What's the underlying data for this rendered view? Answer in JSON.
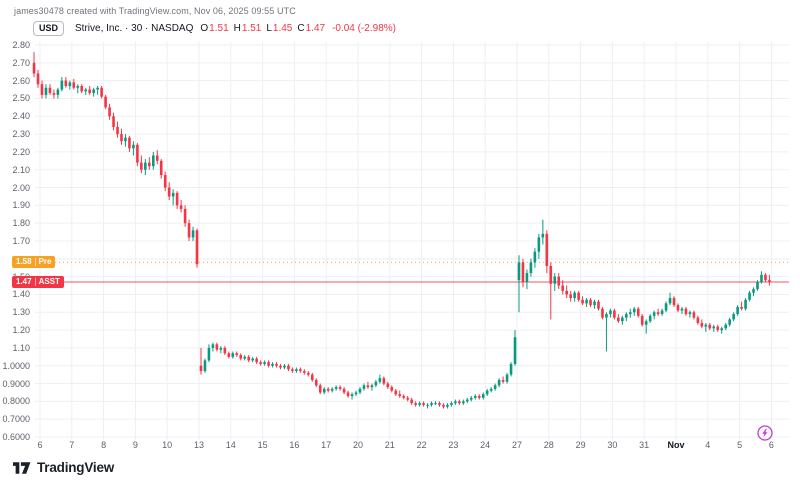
{
  "attribution": "james30478 created with TradingView.com, Nov 06, 2025 09:55 UTC",
  "legend": {
    "currency": "USD",
    "title": "Strive, Inc. · 30 · NASDAQ",
    "o_label": "O",
    "o": "1.51",
    "h_label": "H",
    "h": "1.51",
    "l_label": "L",
    "l": "1.45",
    "c_label": "C",
    "c": "1.47",
    "change": "-0.04 (-2.98%)"
  },
  "footer": {
    "logo_text": "TradingView"
  },
  "icons": {
    "bottom_right": "boost-lightning-icon",
    "logo_mark": "tradingview-mark-icon"
  },
  "colors": {
    "up": "#089981",
    "down": "#F23645",
    "grid": "#EDEFF2",
    "axis_text": "#5D616B",
    "title_text": "#131722",
    "pre_market": "#F7A224",
    "last_price": "#F23645",
    "attribution": "#70747C",
    "logo": "#1B2028",
    "boost": "#C13BD4",
    "background": "#FFFFFF"
  },
  "chart_data": {
    "type": "candlestick",
    "title": "Strive, Inc.",
    "symbol": "ASST",
    "exchange": "NASDAQ",
    "interval": "30",
    "currency": "USD",
    "last_close": "1.47",
    "pre_market_price": "1.58",
    "y_axis": {
      "top": 2.8,
      "bottom": 0.6,
      "grid": true
    },
    "y_ticks": [
      [
        2.8,
        "2.80"
      ],
      [
        2.7,
        "2.70"
      ],
      [
        2.6,
        "2.60"
      ],
      [
        2.5,
        "2.50"
      ],
      [
        2.4,
        "2.40"
      ],
      [
        2.3,
        "2.30"
      ],
      [
        2.2,
        "2.20"
      ],
      [
        2.1,
        "2.10"
      ],
      [
        2.0,
        "2.00"
      ],
      [
        1.9,
        "1.90"
      ],
      [
        1.8,
        "1.80"
      ],
      [
        1.7,
        "1.70"
      ],
      [
        1.6,
        ""
      ],
      [
        1.5,
        "1.50"
      ],
      [
        1.4,
        "1.40"
      ],
      [
        1.3,
        "1.30"
      ],
      [
        1.2,
        "1.20"
      ],
      [
        1.1,
        "1.10"
      ],
      [
        1.0,
        "1.0000"
      ],
      [
        0.9,
        "0.9000"
      ],
      [
        0.8,
        "0.8000"
      ],
      [
        0.7,
        "0.7000"
      ],
      [
        0.6,
        "0.6000"
      ]
    ],
    "x_ticks": [
      [
        0,
        "6"
      ],
      [
        1,
        "7"
      ],
      [
        2,
        "8"
      ],
      [
        3,
        "9"
      ],
      [
        4,
        "10"
      ],
      [
        5,
        "13"
      ],
      [
        6,
        "14"
      ],
      [
        7,
        "15"
      ],
      [
        8,
        "16"
      ],
      [
        9,
        "17"
      ],
      [
        10,
        "20"
      ],
      [
        11,
        "21"
      ],
      [
        12,
        "22"
      ],
      [
        13,
        "23"
      ],
      [
        14,
        "24"
      ],
      [
        15,
        "27"
      ],
      [
        16,
        "28"
      ],
      [
        17,
        "29"
      ],
      [
        18,
        "30"
      ],
      [
        19,
        "31"
      ],
      [
        20,
        "Nov"
      ],
      [
        21,
        "4"
      ],
      [
        22,
        "5"
      ],
      [
        23,
        "6"
      ]
    ],
    "price_lines": [
      {
        "price": 1.58,
        "value": "1.58",
        "tag": "Pre",
        "color": "#F7A224",
        "style": "dotted"
      },
      {
        "price": 1.47,
        "value": "1.47",
        "tag": "ASST",
        "color": "#F23645",
        "style": "solid"
      }
    ],
    "candles": [
      [
        0.25,
        2.7,
        2.76,
        2.62,
        2.64
      ],
      [
        0.375,
        2.64,
        2.66,
        2.56,
        2.58
      ],
      [
        0.5,
        2.58,
        2.6,
        2.5,
        2.52
      ],
      [
        0.625,
        2.52,
        2.58,
        2.5,
        2.56
      ],
      [
        0.75,
        2.56,
        2.58,
        2.52,
        2.53
      ],
      [
        0.875,
        2.53,
        2.55,
        2.5,
        2.52
      ],
      [
        1.0,
        2.52,
        2.56,
        2.5,
        2.55
      ],
      [
        1.125,
        2.55,
        2.62,
        2.54,
        2.6
      ],
      [
        1.25,
        2.6,
        2.62,
        2.56,
        2.57
      ],
      [
        1.375,
        2.57,
        2.6,
        2.55,
        2.59
      ],
      [
        1.5,
        2.59,
        2.61,
        2.55,
        2.56
      ],
      [
        1.625,
        2.56,
        2.58,
        2.53,
        2.57
      ],
      [
        1.75,
        2.57,
        2.58,
        2.53,
        2.54
      ],
      [
        1.875,
        2.54,
        2.56,
        2.52,
        2.55
      ],
      [
        2.0,
        2.55,
        2.57,
        2.52,
        2.53
      ],
      [
        2.125,
        2.53,
        2.56,
        2.51,
        2.55
      ],
      [
        2.25,
        2.55,
        2.57,
        2.52,
        2.56
      ],
      [
        2.375,
        2.56,
        2.57,
        2.5,
        2.51
      ],
      [
        2.5,
        2.51,
        2.52,
        2.44,
        2.45
      ],
      [
        2.625,
        2.45,
        2.47,
        2.38,
        2.4
      ],
      [
        2.75,
        2.4,
        2.42,
        2.32,
        2.34
      ],
      [
        2.875,
        2.34,
        2.37,
        2.28,
        2.3
      ],
      [
        3.0,
        2.3,
        2.33,
        2.24,
        2.26
      ],
      [
        3.125,
        2.26,
        2.3,
        2.23,
        2.28
      ],
      [
        3.25,
        2.28,
        2.29,
        2.2,
        2.22
      ],
      [
        3.375,
        2.22,
        2.26,
        2.18,
        2.24
      ],
      [
        3.5,
        2.24,
        2.25,
        2.12,
        2.14
      ],
      [
        3.625,
        2.14,
        2.18,
        2.08,
        2.1
      ],
      [
        3.75,
        2.1,
        2.16,
        2.07,
        2.14
      ],
      [
        3.875,
        2.14,
        2.17,
        2.1,
        2.12
      ],
      [
        4.0,
        2.12,
        2.2,
        2.1,
        2.18
      ],
      [
        4.125,
        2.18,
        2.21,
        2.13,
        2.15
      ],
      [
        4.25,
        2.15,
        2.16,
        2.05,
        2.07
      ],
      [
        4.375,
        2.07,
        2.09,
        1.98,
        2.0
      ],
      [
        4.5,
        2.0,
        2.03,
        1.93,
        1.95
      ],
      [
        4.625,
        1.95,
        1.99,
        1.9,
        1.97
      ],
      [
        4.75,
        1.97,
        1.98,
        1.88,
        1.9
      ],
      [
        4.875,
        1.9,
        1.93,
        1.86,
        1.88
      ],
      [
        5.0,
        1.88,
        1.9,
        1.78,
        1.8
      ],
      [
        5.125,
        1.8,
        1.82,
        1.7,
        1.72
      ],
      [
        5.25,
        1.72,
        1.78,
        1.7,
        1.76
      ],
      [
        5.375,
        1.76,
        1.77,
        1.55,
        1.57
      ],
      [
        5.5,
        1.0,
        1.1,
        0.95,
        0.97
      ],
      [
        5.625,
        0.97,
        1.04,
        0.96,
        1.03
      ],
      [
        5.75,
        1.03,
        1.12,
        1.02,
        1.1
      ],
      [
        5.875,
        1.1,
        1.13,
        1.08,
        1.12
      ],
      [
        6.0,
        1.12,
        1.13,
        1.08,
        1.09
      ],
      [
        6.125,
        1.09,
        1.11,
        1.07,
        1.1
      ],
      [
        6.25,
        1.1,
        1.11,
        1.06,
        1.07
      ],
      [
        6.375,
        1.07,
        1.08,
        1.04,
        1.05
      ],
      [
        6.5,
        1.05,
        1.08,
        1.04,
        1.07
      ],
      [
        6.625,
        1.07,
        1.08,
        1.05,
        1.06
      ],
      [
        6.75,
        1.06,
        1.07,
        1.03,
        1.04
      ],
      [
        6.875,
        1.04,
        1.06,
        1.03,
        1.05
      ],
      [
        7.0,
        1.05,
        1.06,
        1.02,
        1.03
      ],
      [
        7.125,
        1.03,
        1.05,
        1.02,
        1.04
      ],
      [
        7.25,
        1.04,
        1.05,
        1.01,
        1.02
      ],
      [
        7.375,
        1.02,
        1.03,
        1.0,
        1.01
      ],
      [
        7.5,
        1.01,
        1.03,
        1.0,
        1.02
      ],
      [
        7.625,
        1.02,
        1.03,
        0.99,
        1.0
      ],
      [
        7.75,
        1.0,
        1.02,
        0.99,
        1.01
      ],
      [
        7.875,
        1.01,
        1.02,
        0.99,
        1.0
      ],
      [
        8.0,
        1.0,
        1.01,
        0.98,
        0.99
      ],
      [
        8.125,
        0.99,
        1.01,
        0.98,
        1.0
      ],
      [
        8.25,
        1.0,
        1.01,
        0.97,
        0.98
      ],
      [
        8.375,
        0.98,
        0.99,
        0.96,
        0.97
      ],
      [
        8.5,
        0.97,
        0.99,
        0.96,
        0.98
      ],
      [
        8.625,
        0.98,
        0.99,
        0.96,
        0.97
      ],
      [
        8.75,
        0.97,
        0.98,
        0.95,
        0.96
      ],
      [
        8.875,
        0.96,
        0.97,
        0.94,
        0.95
      ],
      [
        9.0,
        0.95,
        0.96,
        0.91,
        0.92
      ],
      [
        9.125,
        0.92,
        0.93,
        0.88,
        0.89
      ],
      [
        9.25,
        0.89,
        0.9,
        0.84,
        0.85
      ],
      [
        9.375,
        0.85,
        0.88,
        0.84,
        0.87
      ],
      [
        9.5,
        0.87,
        0.88,
        0.85,
        0.86
      ],
      [
        9.625,
        0.86,
        0.88,
        0.85,
        0.87
      ],
      [
        9.75,
        0.87,
        0.89,
        0.86,
        0.88
      ],
      [
        9.875,
        0.88,
        0.89,
        0.86,
        0.87
      ],
      [
        10.0,
        0.87,
        0.88,
        0.84,
        0.85
      ],
      [
        10.125,
        0.85,
        0.86,
        0.82,
        0.83
      ],
      [
        10.25,
        0.83,
        0.85,
        0.81,
        0.84
      ],
      [
        10.375,
        0.84,
        0.86,
        0.83,
        0.85
      ],
      [
        10.5,
        0.85,
        0.88,
        0.84,
        0.87
      ],
      [
        10.625,
        0.87,
        0.9,
        0.86,
        0.89
      ],
      [
        10.75,
        0.89,
        0.91,
        0.87,
        0.88
      ],
      [
        10.875,
        0.88,
        0.9,
        0.86,
        0.89
      ],
      [
        11.0,
        0.89,
        0.92,
        0.88,
        0.91
      ],
      [
        11.125,
        0.91,
        0.95,
        0.9,
        0.93
      ],
      [
        11.25,
        0.93,
        0.94,
        0.89,
        0.9
      ],
      [
        11.375,
        0.9,
        0.91,
        0.87,
        0.88
      ],
      [
        11.5,
        0.88,
        0.89,
        0.85,
        0.86
      ],
      [
        11.625,
        0.86,
        0.87,
        0.83,
        0.84
      ],
      [
        11.75,
        0.84,
        0.86,
        0.82,
        0.83
      ],
      [
        11.875,
        0.83,
        0.84,
        0.81,
        0.82
      ],
      [
        12.0,
        0.82,
        0.83,
        0.8,
        0.81
      ],
      [
        12.125,
        0.81,
        0.82,
        0.78,
        0.79
      ],
      [
        12.25,
        0.79,
        0.8,
        0.77,
        0.78
      ],
      [
        12.375,
        0.78,
        0.8,
        0.77,
        0.79
      ],
      [
        12.5,
        0.79,
        0.8,
        0.77,
        0.78
      ],
      [
        12.625,
        0.78,
        0.79,
        0.76,
        0.78
      ],
      [
        12.75,
        0.78,
        0.8,
        0.77,
        0.79
      ],
      [
        12.875,
        0.79,
        0.8,
        0.78,
        0.79
      ],
      [
        13.0,
        0.79,
        0.8,
        0.77,
        0.78
      ],
      [
        13.125,
        0.78,
        0.79,
        0.76,
        0.77
      ],
      [
        13.25,
        0.77,
        0.79,
        0.76,
        0.78
      ],
      [
        13.375,
        0.78,
        0.8,
        0.77,
        0.79
      ],
      [
        13.5,
        0.79,
        0.81,
        0.78,
        0.8
      ],
      [
        13.625,
        0.8,
        0.81,
        0.78,
        0.79
      ],
      [
        13.75,
        0.79,
        0.81,
        0.78,
        0.8
      ],
      [
        13.875,
        0.8,
        0.82,
        0.79,
        0.81
      ],
      [
        14.0,
        0.81,
        0.83,
        0.8,
        0.82
      ],
      [
        14.125,
        0.82,
        0.84,
        0.81,
        0.83
      ],
      [
        14.25,
        0.83,
        0.84,
        0.81,
        0.82
      ],
      [
        14.375,
        0.82,
        0.85,
        0.81,
        0.84
      ],
      [
        14.5,
        0.84,
        0.87,
        0.83,
        0.86
      ],
      [
        14.625,
        0.86,
        0.88,
        0.85,
        0.87
      ],
      [
        14.75,
        0.87,
        0.9,
        0.86,
        0.89
      ],
      [
        14.875,
        0.89,
        0.93,
        0.88,
        0.92
      ],
      [
        15.0,
        0.92,
        0.94,
        0.9,
        0.91
      ],
      [
        15.125,
        0.91,
        0.96,
        0.9,
        0.95
      ],
      [
        15.25,
        0.95,
        1.02,
        0.94,
        1.01
      ],
      [
        15.375,
        1.01,
        1.2,
        1.0,
        1.16
      ],
      [
        15.5,
        1.48,
        1.62,
        1.3,
        1.58
      ],
      [
        15.625,
        1.58,
        1.6,
        1.44,
        1.47
      ],
      [
        15.75,
        1.47,
        1.54,
        1.43,
        1.52
      ],
      [
        15.875,
        1.52,
        1.6,
        1.5,
        1.58
      ],
      [
        16.0,
        1.58,
        1.66,
        1.55,
        1.64
      ],
      [
        16.125,
        1.64,
        1.74,
        1.6,
        1.72
      ],
      [
        16.25,
        1.72,
        1.82,
        1.68,
        1.74
      ],
      [
        16.375,
        1.74,
        1.76,
        1.52,
        1.56
      ],
      [
        16.5,
        1.56,
        1.58,
        1.26,
        1.46
      ],
      [
        16.625,
        1.46,
        1.52,
        1.42,
        1.5
      ],
      [
        16.75,
        1.5,
        1.52,
        1.43,
        1.45
      ],
      [
        16.875,
        1.45,
        1.48,
        1.4,
        1.42
      ],
      [
        17.0,
        1.42,
        1.45,
        1.38,
        1.4
      ],
      [
        17.125,
        1.4,
        1.42,
        1.36,
        1.38
      ],
      [
        17.25,
        1.38,
        1.42,
        1.36,
        1.41
      ],
      [
        17.375,
        1.41,
        1.42,
        1.36,
        1.37
      ],
      [
        17.5,
        1.37,
        1.39,
        1.34,
        1.35
      ],
      [
        17.625,
        1.35,
        1.38,
        1.33,
        1.37
      ],
      [
        17.75,
        1.37,
        1.38,
        1.33,
        1.34
      ],
      [
        17.875,
        1.34,
        1.37,
        1.32,
        1.36
      ],
      [
        18.0,
        1.36,
        1.37,
        1.31,
        1.32
      ],
      [
        18.125,
        1.32,
        1.33,
        1.26,
        1.27
      ],
      [
        18.25,
        1.27,
        1.3,
        1.08,
        1.29
      ],
      [
        18.375,
        1.29,
        1.32,
        1.27,
        1.31
      ],
      [
        18.5,
        1.31,
        1.32,
        1.26,
        1.27
      ],
      [
        18.625,
        1.27,
        1.29,
        1.24,
        1.25
      ],
      [
        18.75,
        1.25,
        1.28,
        1.23,
        1.27
      ],
      [
        18.875,
        1.27,
        1.3,
        1.25,
        1.29
      ],
      [
        19.0,
        1.29,
        1.32,
        1.27,
        1.3
      ],
      [
        19.125,
        1.3,
        1.33,
        1.28,
        1.32
      ],
      [
        19.25,
        1.32,
        1.33,
        1.27,
        1.28
      ],
      [
        19.375,
        1.28,
        1.29,
        1.22,
        1.23
      ],
      [
        19.5,
        1.23,
        1.26,
        1.18,
        1.25
      ],
      [
        19.625,
        1.25,
        1.29,
        1.24,
        1.28
      ],
      [
        19.75,
        1.28,
        1.31,
        1.26,
        1.3
      ],
      [
        19.875,
        1.3,
        1.32,
        1.28,
        1.29
      ],
      [
        20.0,
        1.29,
        1.32,
        1.28,
        1.31
      ],
      [
        20.125,
        1.31,
        1.36,
        1.3,
        1.35
      ],
      [
        20.25,
        1.35,
        1.41,
        1.34,
        1.38
      ],
      [
        20.375,
        1.38,
        1.39,
        1.33,
        1.34
      ],
      [
        20.5,
        1.34,
        1.35,
        1.3,
        1.31
      ],
      [
        20.625,
        1.31,
        1.33,
        1.29,
        1.32
      ],
      [
        20.75,
        1.32,
        1.33,
        1.28,
        1.29
      ],
      [
        20.875,
        1.29,
        1.31,
        1.27,
        1.3
      ],
      [
        21.0,
        1.3,
        1.31,
        1.26,
        1.27
      ],
      [
        21.125,
        1.27,
        1.28,
        1.23,
        1.24
      ],
      [
        21.25,
        1.24,
        1.26,
        1.21,
        1.22
      ],
      [
        21.375,
        1.22,
        1.24,
        1.19,
        1.23
      ],
      [
        21.5,
        1.23,
        1.24,
        1.2,
        1.21
      ],
      [
        21.625,
        1.21,
        1.23,
        1.19,
        1.22
      ],
      [
        21.75,
        1.22,
        1.23,
        1.19,
        1.2
      ],
      [
        21.875,
        1.2,
        1.22,
        1.18,
        1.21
      ],
      [
        22.0,
        1.21,
        1.24,
        1.2,
        1.23
      ],
      [
        22.125,
        1.23,
        1.27,
        1.22,
        1.26
      ],
      [
        22.25,
        1.26,
        1.3,
        1.25,
        1.29
      ],
      [
        22.375,
        1.29,
        1.34,
        1.28,
        1.33
      ],
      [
        22.5,
        1.33,
        1.36,
        1.31,
        1.32
      ],
      [
        22.625,
        1.32,
        1.38,
        1.31,
        1.37
      ],
      [
        22.75,
        1.37,
        1.42,
        1.36,
        1.41
      ],
      [
        22.875,
        1.41,
        1.44,
        1.39,
        1.43
      ],
      [
        23.0,
        1.43,
        1.48,
        1.42,
        1.47
      ],
      [
        23.125,
        1.47,
        1.53,
        1.46,
        1.51
      ],
      [
        23.25,
        1.51,
        1.52,
        1.47,
        1.48
      ],
      [
        23.375,
        1.48,
        1.51,
        1.45,
        1.47
      ]
    ]
  }
}
